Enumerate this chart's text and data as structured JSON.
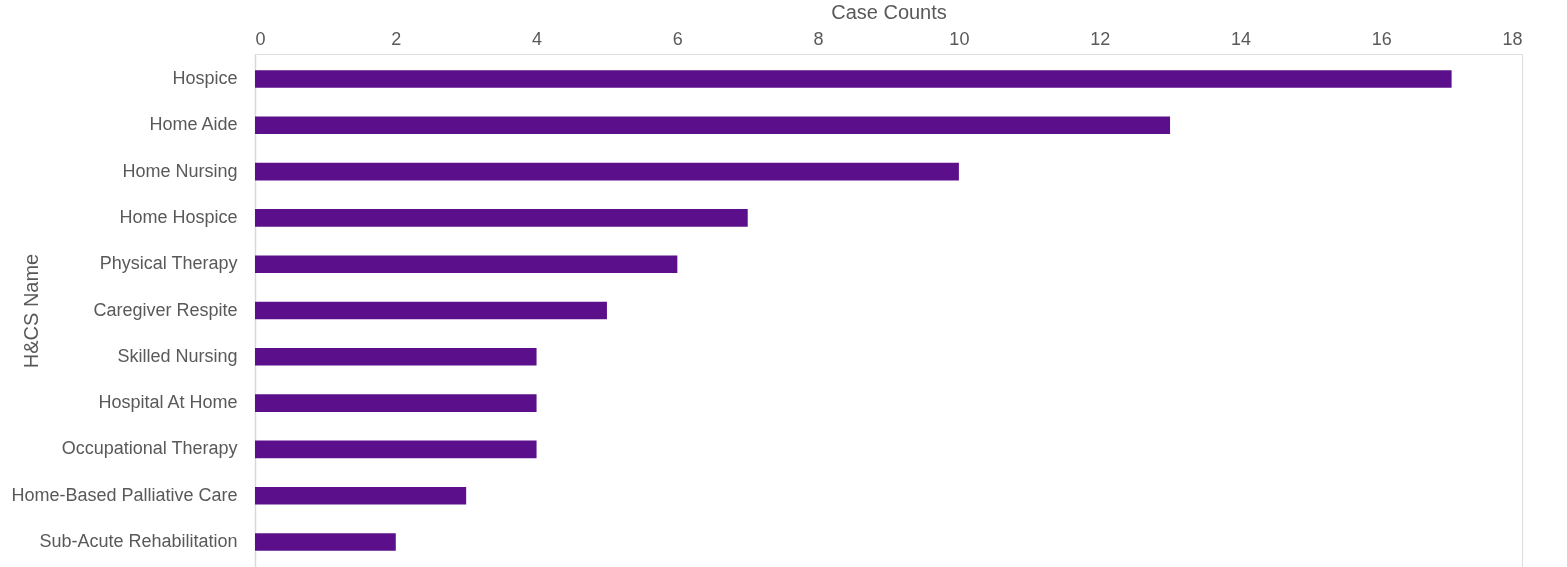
{
  "chart_data": {
    "type": "bar",
    "orientation": "horizontal",
    "xlabel": "Case Counts",
    "ylabel": "H&CS Name",
    "categories": [
      "Hospice",
      "Home Aide",
      "Home Nursing",
      "Home Hospice",
      "Physical Therapy",
      "Caregiver Respite",
      "Skilled Nursing",
      "Hospital At Home",
      "Occupational Therapy",
      "Home-Based Palliative Care",
      "Sub-Acute Rehabilitation"
    ],
    "values": [
      17,
      13,
      10,
      7,
      6,
      5,
      4,
      4,
      4,
      3,
      2
    ],
    "color": "#5b0f8b",
    "xlim": [
      0,
      18
    ],
    "xticks": [
      0,
      2,
      4,
      6,
      8,
      10,
      12,
      14,
      16,
      18
    ],
    "grid": false
  }
}
